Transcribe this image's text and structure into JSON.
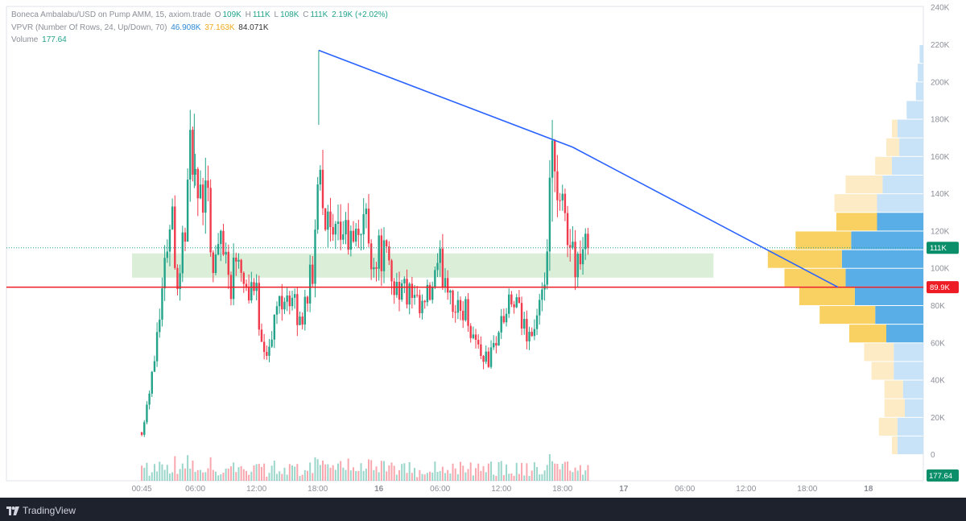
{
  "legend": {
    "symbol": "Boneca Ambalabu/USD on Pump AMM, 15, axiom.trade",
    "open_label": "O",
    "open": "109K",
    "high_label": "H",
    "high": "111K",
    "low_label": "L",
    "low": "108K",
    "close_label": "C",
    "close": "111K",
    "change": "2.19K (+2.02%)",
    "vpvr_title": "VPVR (Number Of Rows, 24, Up/Down, 70)",
    "vpvr_up": "46.908K",
    "vpvr_down": "37.163K",
    "vpvr_total": "84.071K",
    "volume_label": "Volume",
    "volume_value": "177.64"
  },
  "price_tags": {
    "last_price": "111K",
    "horizontal_line": "89.9K",
    "volume": "177.64"
  },
  "branding": {
    "logo_text": "TradingView"
  },
  "colors": {
    "up": "#22a38a",
    "down": "#ef3b4c",
    "trendline": "#2962ff",
    "hline": "#ed1c24",
    "zone": "#d6ecd4",
    "vp_up": "#5aaee8",
    "vp_down": "#f9d162",
    "vp_up_light": "#c8e2f7",
    "vp_down_light": "#fcebc4"
  },
  "chart_data": {
    "type": "candlestick",
    "title": "Boneca Ambalabu/USD on Pump AMM, 15, axiom.trade",
    "interval": "15",
    "y_axis": {
      "ticks": [
        0,
        20000,
        40000,
        60000,
        80000,
        100000,
        120000,
        140000,
        160000,
        180000,
        200000,
        220000,
        240000
      ],
      "tick_labels": [
        "0",
        "20K",
        "40K",
        "60K",
        "80K",
        "100K",
        "120K",
        "140K",
        "160K",
        "180K",
        "200K",
        "220K",
        "240K"
      ],
      "range": [
        -10000,
        245000
      ]
    },
    "x_axis": {
      "tick_labels": [
        "00:45",
        "06:00",
        "12:00",
        "18:00",
        "16",
        "06:00",
        "12:00",
        "18:00",
        "17",
        "06:00",
        "12:00",
        "18:00",
        "18"
      ],
      "tick_hours": [
        0.75,
        6,
        12,
        18,
        24,
        30,
        36,
        42,
        48,
        54,
        60,
        66,
        72
      ],
      "bold": [
        false,
        false,
        false,
        false,
        true,
        false,
        false,
        false,
        true,
        false,
        false,
        false,
        true
      ],
      "range_hours": [
        -14.6,
        75
      ]
    },
    "anchors": [
      [
        0.75,
        12000
      ],
      [
        1.3,
        28000
      ],
      [
        2.0,
        55000
      ],
      [
        2.5,
        80000
      ],
      [
        3.0,
        100000
      ],
      [
        3.6,
        140000
      ],
      [
        4.3,
        90000
      ],
      [
        5.0,
        125000
      ],
      [
        5.7,
        170000
      ],
      [
        6.3,
        120000
      ],
      [
        7.0,
        160000
      ],
      [
        7.8,
        95000
      ],
      [
        8.6,
        125000
      ],
      [
        9.4,
        90000
      ],
      [
        10.2,
        115000
      ],
      [
        11.0,
        90000
      ],
      [
        11.8,
        92000
      ],
      [
        12.6,
        60000
      ],
      [
        13.3,
        55000
      ],
      [
        14.0,
        80000
      ],
      [
        14.8,
        90000
      ],
      [
        15.6,
        80000
      ],
      [
        16.3,
        70000
      ],
      [
        17.0,
        90000
      ],
      [
        17.6,
        95000
      ],
      [
        18.1,
        170000
      ],
      [
        18.7,
        130000
      ],
      [
        19.5,
        110000
      ],
      [
        20.5,
        120000
      ],
      [
        21.5,
        110000
      ],
      [
        22.5,
        130000
      ],
      [
        23.4,
        105000
      ],
      [
        24.3,
        110000
      ],
      [
        25.2,
        95000
      ],
      [
        26.0,
        90000
      ],
      [
        27.0,
        85000
      ],
      [
        28.0,
        75000
      ],
      [
        29.0,
        85000
      ],
      [
        30.0,
        100000
      ],
      [
        30.8,
        95000
      ],
      [
        31.6,
        75000
      ],
      [
        32.4,
        80000
      ],
      [
        33.2,
        65000
      ],
      [
        34.0,
        55000
      ],
      [
        34.8,
        50000
      ],
      [
        35.6,
        65000
      ],
      [
        36.4,
        75000
      ],
      [
        37.2,
        82000
      ],
      [
        38.0,
        70000
      ],
      [
        39.0,
        65000
      ],
      [
        40.0,
        80000
      ],
      [
        40.5,
        110000
      ],
      [
        41.0,
        160000
      ],
      [
        41.6,
        125000
      ],
      [
        42.2,
        135000
      ],
      [
        42.8,
        110000
      ],
      [
        43.4,
        105000
      ],
      [
        44.0,
        108000
      ],
      [
        44.5,
        111000
      ]
    ],
    "volume": {
      "label": "Volume",
      "last": 177.64
    },
    "volume_profile": {
      "title": "VPVR (Number Of Rows, 24, Up/Down, 70)",
      "row_height": 10000,
      "rows": [
        {
          "low": 0,
          "up": 7000,
          "down": 1500
        },
        {
          "low": 10000,
          "up": 7000,
          "down": 5000
        },
        {
          "low": 20000,
          "up": 5000,
          "down": 5500
        },
        {
          "low": 30000,
          "up": 5500,
          "down": 5000
        },
        {
          "low": 40000,
          "up": 8000,
          "down": 6000
        },
        {
          "low": 50000,
          "up": 8000,
          "down": 8000
        },
        {
          "low": 60000,
          "up": 10000,
          "down": 10000
        },
        {
          "low": 70000,
          "up": 13000,
          "down": 15000
        },
        {
          "low": 80000,
          "up": 18500,
          "down": 15000
        },
        {
          "low": 90000,
          "up": 21000,
          "down": 16500
        },
        {
          "low": 100000,
          "up": 22000,
          "down": 20000
        },
        {
          "low": 110000,
          "up": 19500,
          "down": 15000
        },
        {
          "low": 120000,
          "up": 12500,
          "down": 11000
        },
        {
          "low": 130000,
          "up": 12500,
          "down": 11500
        },
        {
          "low": 140000,
          "up": 11000,
          "down": 10000
        },
        {
          "low": 150000,
          "up": 8500,
          "down": 4500
        },
        {
          "low": 160000,
          "up": 6500,
          "down": 3500
        },
        {
          "low": 170000,
          "up": 7000,
          "down": 1500
        },
        {
          "low": 180000,
          "up": 4500,
          "down": 0
        },
        {
          "low": 190000,
          "up": 2000,
          "down": 0
        },
        {
          "low": 200000,
          "up": 1500,
          "down": 0
        },
        {
          "low": 210000,
          "up": 1000,
          "down": 0
        },
        {
          "low": 220000,
          "up": 0,
          "down": 0
        },
        {
          "low": 230000,
          "up": 0,
          "down": 0
        }
      ],
      "value_area": {
        "low": 60000,
        "high": 130000
      }
    },
    "drawings": {
      "trendline": [
        [
          18.1,
          217000
        ],
        [
          43.0,
          165000
        ],
        [
          69.0,
          89900
        ]
      ],
      "horizontal_line": 89900,
      "zone": {
        "t0": -0.2,
        "t1": 56.8,
        "p0": 95000,
        "p1": 108000
      },
      "last_price_line": 111000
    }
  }
}
